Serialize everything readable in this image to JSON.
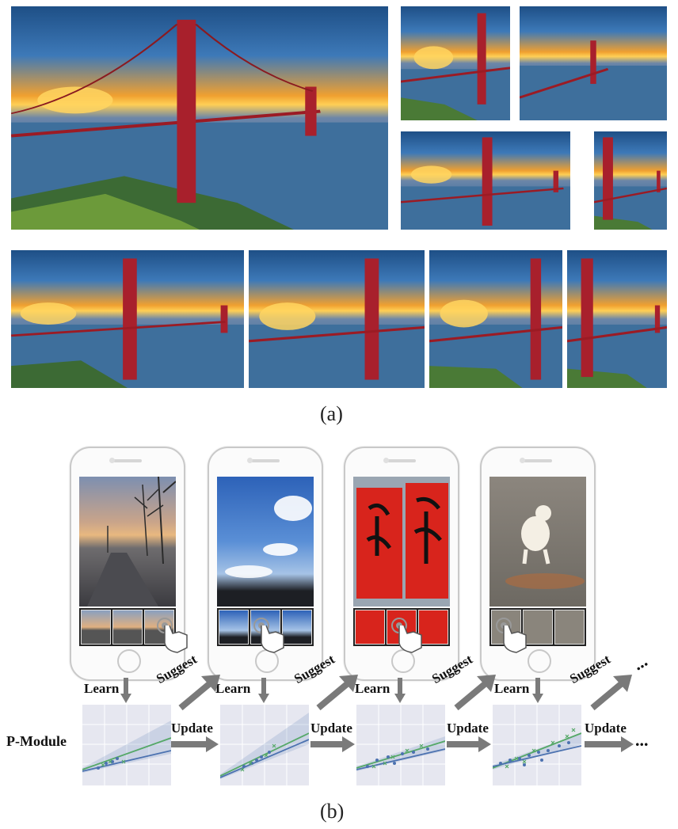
{
  "figure": {
    "caption_a": "(a)",
    "caption_b": "(b)"
  },
  "workflow": {
    "module_label": "P-Module",
    "learn_label": "Learn",
    "suggest_label": "Suggest",
    "update_label": "Update",
    "ellipsis": "..."
  },
  "colors": {
    "arrow": "#7a7a7a",
    "blue_series": "#4c72b0",
    "green_series": "#55a868",
    "plot_bg": "#e6e7f0"
  }
}
